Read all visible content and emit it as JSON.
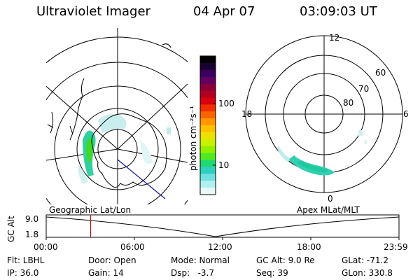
{
  "header": {
    "instrument": "Ultraviolet Imager",
    "date": "04 Apr 07",
    "time": "03:09:03 UT"
  },
  "maps": {
    "left_label": "Geographic Lat/Lon",
    "right_label": "Apex MLat/MLT",
    "right_mlt_labels": [
      "12",
      "18",
      "6",
      "0"
    ],
    "right_lat_labels": [
      "60",
      "70",
      "80"
    ]
  },
  "colorbar": {
    "unit_label": "photon cm⁻²s⁻¹",
    "ticks": [
      "100",
      "10"
    ],
    "colors": [
      "#000000",
      "#1a0030",
      "#3a0060",
      "#600060",
      "#8a003a",
      "#b00020",
      "#d80010",
      "#f03000",
      "#f86400",
      "#ff9800",
      "#ffc000",
      "#f0e000",
      "#c8f000",
      "#90f000",
      "#50e820",
      "#20d870",
      "#30d0c0",
      "#70e0e0",
      "#b0f0f0",
      "#e8f8f8"
    ]
  },
  "timeline": {
    "ylabel": "GC Alt",
    "y_ticks": [
      "9.0",
      "1.8"
    ],
    "x_ticks": [
      "00:00",
      "06:00",
      "12:00",
      "18:00",
      "23:59"
    ],
    "current_time_fraction": 0.126,
    "marker_color": "#d00000"
  },
  "info": {
    "col1": [
      "Flt: LBHL",
      "IP: 36.0"
    ],
    "col2": [
      "Door: Open",
      "Gain: 14"
    ],
    "col3": [
      "Mode: Normal",
      "Dsp:   -3.7"
    ],
    "col4": [
      "GC Alt: 9.0 Re",
      "Seq: 39"
    ],
    "col5": [
      "GLat: -71.2",
      "GLon: 330.8"
    ]
  }
}
